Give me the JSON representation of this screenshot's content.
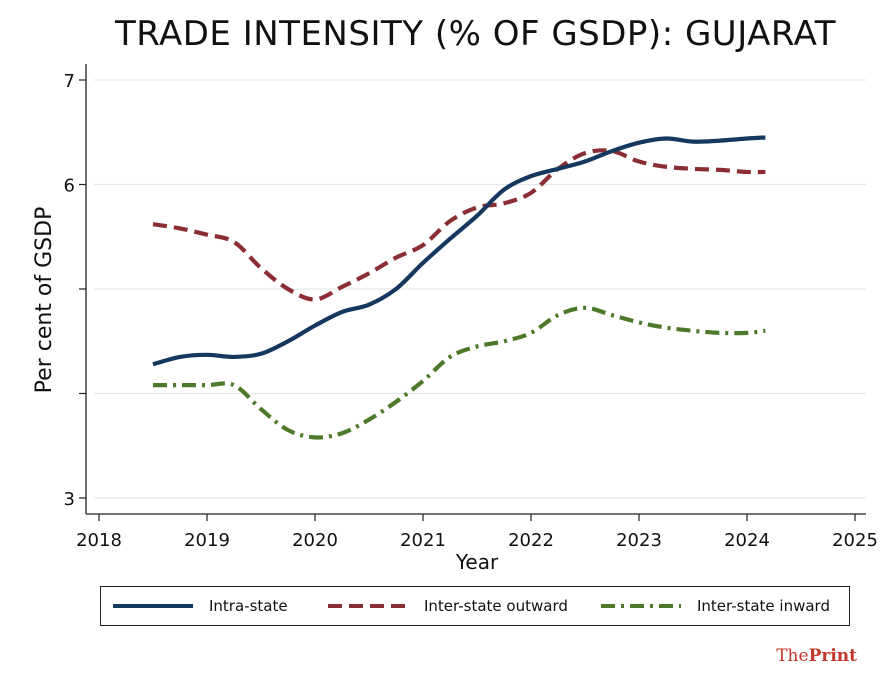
{
  "chart_data": {
    "type": "line",
    "title": "TRADE INTENSITY (% OF GSDP): GUJARAT",
    "xlabel": "Year",
    "ylabel": "Per cent of GSDP",
    "xlim": [
      2018,
      2025
    ],
    "ylim": [
      3,
      7
    ],
    "x_ticks": [
      "2018",
      "2019",
      "2020",
      "2021",
      "2022",
      "2023",
      "2024",
      "2025"
    ],
    "y_ticks": [
      "3",
      "",
      "",
      "6",
      "7"
    ],
    "grid": true,
    "legend_position": "bottom",
    "series": [
      {
        "name": "Intra-state",
        "color": "#16375e",
        "style": "solid",
        "x": [
          2018.5,
          2018.75,
          2019.0,
          2019.25,
          2019.5,
          2019.75,
          2020.0,
          2020.25,
          2020.5,
          2020.75,
          2021.0,
          2021.25,
          2021.5,
          2021.75,
          2022.0,
          2022.25,
          2022.5,
          2022.75,
          2023.0,
          2023.25,
          2023.5,
          2023.75,
          2024.0,
          2024.17
        ],
        "values": [
          4.28,
          4.35,
          4.37,
          4.35,
          4.38,
          4.5,
          4.65,
          4.78,
          4.85,
          5.0,
          5.25,
          5.48,
          5.7,
          5.95,
          6.08,
          6.15,
          6.22,
          6.32,
          6.4,
          6.44,
          6.41,
          6.42,
          6.44,
          6.45
        ]
      },
      {
        "name": "Inter-state outward",
        "color": "#8b2e33",
        "style": "dashed",
        "x": [
          2018.5,
          2018.75,
          2019.0,
          2019.25,
          2019.5,
          2019.75,
          2020.0,
          2020.25,
          2020.5,
          2020.75,
          2021.0,
          2021.25,
          2021.5,
          2021.75,
          2022.0,
          2022.25,
          2022.5,
          2022.75,
          2023.0,
          2023.25,
          2023.5,
          2023.75,
          2024.0,
          2024.17
        ],
        "values": [
          5.62,
          5.58,
          5.52,
          5.45,
          5.2,
          5.0,
          4.9,
          5.02,
          5.15,
          5.3,
          5.42,
          5.65,
          5.78,
          5.82,
          5.92,
          6.15,
          6.3,
          6.32,
          6.22,
          6.17,
          6.15,
          6.14,
          6.12,
          6.12
        ]
      },
      {
        "name": "Inter-state inward",
        "color": "#4d7a2a",
        "style": "dash-dot",
        "x": [
          2018.5,
          2018.75,
          2019.0,
          2019.25,
          2019.5,
          2019.75,
          2020.0,
          2020.25,
          2020.5,
          2020.75,
          2021.0,
          2021.25,
          2021.5,
          2021.75,
          2022.0,
          2022.25,
          2022.5,
          2022.75,
          2023.0,
          2023.25,
          2023.5,
          2023.75,
          2024.0,
          2024.17
        ],
        "values": [
          4.08,
          4.08,
          4.08,
          4.08,
          3.85,
          3.65,
          3.58,
          3.62,
          3.75,
          3.92,
          4.12,
          4.35,
          4.45,
          4.5,
          4.58,
          4.75,
          4.82,
          4.75,
          4.68,
          4.63,
          4.6,
          4.58,
          4.58,
          4.6
        ]
      }
    ]
  },
  "watermark": {
    "prefix": "The",
    "brand": "Print"
  }
}
